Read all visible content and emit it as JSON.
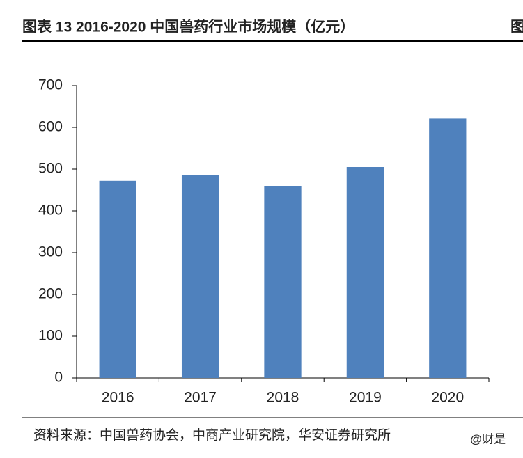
{
  "chart_data": {
    "type": "bar",
    "title": "图表 13 2016-2020 中国兽药行业市场规模（亿元）",
    "title_right": "图",
    "categories": [
      "2016",
      "2017",
      "2018",
      "2019",
      "2020"
    ],
    "values": [
      472,
      485,
      460,
      505,
      621
    ],
    "color": "#4f81bd",
    "ylim": [
      0,
      700
    ],
    "yticks": [
      0,
      100,
      200,
      300,
      400,
      500,
      600,
      700
    ],
    "grid": false,
    "source": "资料来源：中国兽药协会，中商产业研究院，华安证券研究所",
    "watermark": "@财是"
  }
}
